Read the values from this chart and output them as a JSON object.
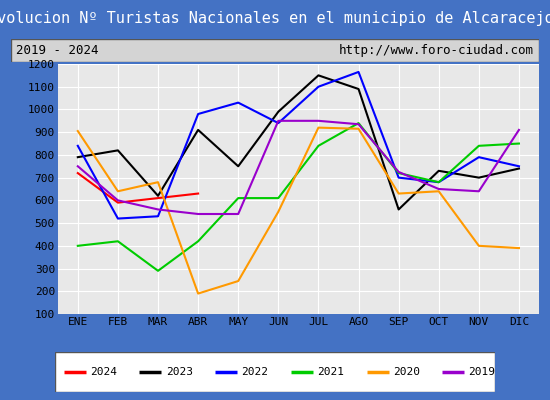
{
  "title": "Evolucion Nº Turistas Nacionales en el municipio de Alcaracejos",
  "subtitle_left": "2019 - 2024",
  "subtitle_right": "http://www.foro-ciudad.com",
  "months": [
    "ENE",
    "FEB",
    "MAR",
    "ABR",
    "MAY",
    "JUN",
    "JUL",
    "AGO",
    "SEP",
    "OCT",
    "NOV",
    "DIC"
  ],
  "ylim": [
    100,
    1200
  ],
  "yticks": [
    100,
    200,
    300,
    400,
    500,
    600,
    700,
    800,
    900,
    1000,
    1100,
    1200
  ],
  "series": {
    "2024": {
      "color": "#ff0000",
      "data": [
        720,
        590,
        610,
        630,
        null,
        null,
        null,
        null,
        null,
        null,
        null,
        null
      ]
    },
    "2023": {
      "color": "#000000",
      "data": [
        790,
        820,
        620,
        910,
        750,
        990,
        1150,
        1090,
        560,
        730,
        700,
        740
      ]
    },
    "2022": {
      "color": "#0000ff",
      "data": [
        840,
        520,
        530,
        980,
        1030,
        940,
        1100,
        1165,
        700,
        680,
        790,
        750
      ]
    },
    "2021": {
      "color": "#00cc00",
      "data": [
        400,
        420,
        290,
        420,
        610,
        610,
        840,
        940,
        720,
        680,
        840,
        850
      ]
    },
    "2020": {
      "color": "#ff9900",
      "data": [
        905,
        640,
        680,
        190,
        245,
        550,
        920,
        915,
        630,
        640,
        400,
        390
      ]
    },
    "2019": {
      "color": "#9900cc",
      "data": [
        750,
        600,
        560,
        540,
        540,
        950,
        950,
        935,
        725,
        650,
        640,
        910
      ]
    }
  },
  "title_bg": "#4472c4",
  "title_color": "#ffffff",
  "title_fontsize": 11,
  "subtitle_fontsize": 9,
  "plot_bg": "#e8e8e8",
  "grid_color": "#ffffff",
  "legend_order": [
    "2024",
    "2023",
    "2022",
    "2021",
    "2020",
    "2019"
  ],
  "fig_bg": "#4472c4"
}
